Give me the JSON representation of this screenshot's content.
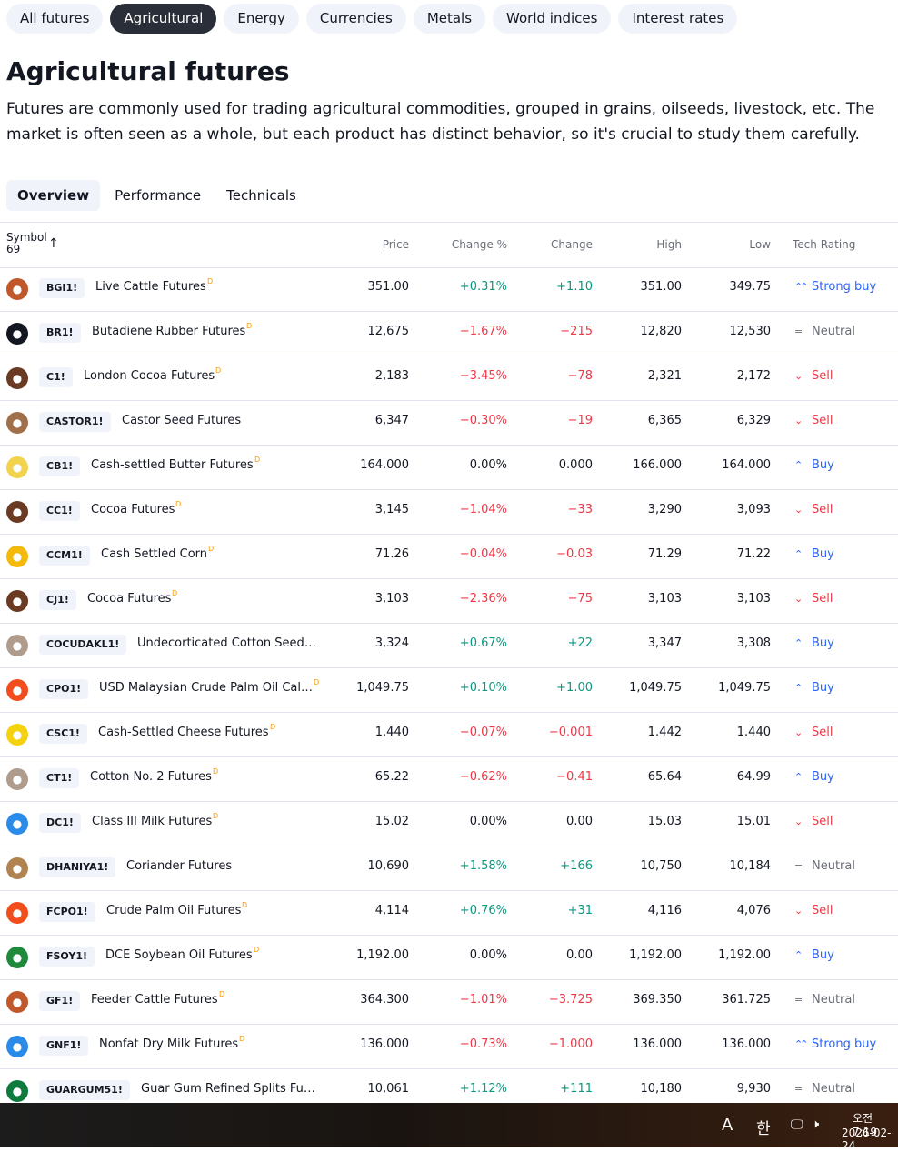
{
  "filters": [
    {
      "label": "All futures",
      "active": false
    },
    {
      "label": "Agricultural",
      "active": true
    },
    {
      "label": "Energy",
      "active": false
    },
    {
      "label": "Currencies",
      "active": false
    },
    {
      "label": "Metals",
      "active": false
    },
    {
      "label": "World indices",
      "active": false
    },
    {
      "label": "Interest rates",
      "active": false
    }
  ],
  "page": {
    "title": "Agricultural futures",
    "description": "Futures are commonly used for trading agricultural commodities, grouped in grains, oilseeds, livestock, etc. The market is often seen as a whole, but each product has distinct behavior, so it's crucial to study them carefully."
  },
  "tabs": [
    {
      "label": "Overview",
      "active": true
    },
    {
      "label": "Performance",
      "active": false
    },
    {
      "label": "Technicals",
      "active": false
    }
  ],
  "table": {
    "headers": {
      "symbol": "Symbol",
      "count": "69",
      "price": "Price",
      "change_pct": "Change %",
      "change": "Change",
      "high": "High",
      "low": "Low",
      "tech_rating": "Tech Rating"
    },
    "rows": [
      {
        "icon": "cattle-icon",
        "icon_color": "#c0582c",
        "ticker": "BGI1!",
        "name": "Live Cattle Futures",
        "delayed": true,
        "price": "351.00",
        "change_pct": "+0.31%",
        "change": "+1.10",
        "high": "351.00",
        "low": "349.75",
        "rating": "Strong buy",
        "dir": "pos",
        "rclass": "buy",
        "rglyph": "⌃⌃"
      },
      {
        "icon": "rubber-icon",
        "icon_color": "#131722",
        "ticker": "BR1!",
        "name": "Butadiene Rubber Futures",
        "delayed": true,
        "price": "12,675",
        "change_pct": "−1.67%",
        "change": "−215",
        "high": "12,820",
        "low": "12,530",
        "rating": "Neutral",
        "dir": "neg",
        "rclass": "neutral",
        "rglyph": "="
      },
      {
        "icon": "cocoa-icon",
        "icon_color": "#6b3a23",
        "ticker": "C1!",
        "name": "London Cocoa Futures",
        "delayed": true,
        "price": "2,183",
        "change_pct": "−3.45%",
        "change": "−78",
        "high": "2,321",
        "low": "2,172",
        "rating": "Sell",
        "dir": "neg",
        "rclass": "sell",
        "rglyph": "⌄"
      },
      {
        "icon": "seed-icon",
        "icon_color": "#a0704b",
        "ticker": "CASTOR1!",
        "name": "Castor Seed Futures",
        "delayed": false,
        "price": "6,347",
        "change_pct": "−0.30%",
        "change": "−19",
        "high": "6,365",
        "low": "6,329",
        "rating": "Sell",
        "dir": "neg",
        "rclass": "sell",
        "rglyph": "⌄"
      },
      {
        "icon": "butter-icon",
        "icon_color": "#f2d34d",
        "ticker": "CB1!",
        "name": "Cash-settled Butter Futures",
        "delayed": true,
        "price": "164.000",
        "change_pct": "0.00%",
        "change": "0.000",
        "high": "166.000",
        "low": "164.000",
        "rating": "Buy",
        "dir": "neu",
        "rclass": "buy",
        "rglyph": "⌃"
      },
      {
        "icon": "cocoa-icon",
        "icon_color": "#6b3a23",
        "ticker": "CC1!",
        "name": "Cocoa Futures",
        "delayed": true,
        "price": "3,145",
        "change_pct": "−1.04%",
        "change": "−33",
        "high": "3,290",
        "low": "3,093",
        "rating": "Sell",
        "dir": "neg",
        "rclass": "sell",
        "rglyph": "⌄"
      },
      {
        "icon": "corn-icon",
        "icon_color": "#f3b90b",
        "ticker": "CCM1!",
        "name": "Cash Settled Corn",
        "delayed": true,
        "price": "71.26",
        "change_pct": "−0.04%",
        "change": "−0.03",
        "high": "71.29",
        "low": "71.22",
        "rating": "Buy",
        "dir": "neg",
        "rclass": "buy",
        "rglyph": "⌃"
      },
      {
        "icon": "cocoa-icon",
        "icon_color": "#6b3a23",
        "ticker": "CJ1!",
        "name": "Cocoa Futures",
        "delayed": true,
        "price": "3,103",
        "change_pct": "−2.36%",
        "change": "−75",
        "high": "3,103",
        "low": "3,103",
        "rating": "Sell",
        "dir": "neg",
        "rclass": "sell",
        "rglyph": "⌄"
      },
      {
        "icon": "cotton-icon",
        "icon_color": "#b09c8c",
        "ticker": "COCUDAKL1!",
        "name": "Undecorticated Cotton Seed Oi…",
        "delayed": false,
        "price": "3,324",
        "change_pct": "+0.67%",
        "change": "+22",
        "high": "3,347",
        "low": "3,308",
        "rating": "Buy",
        "dir": "pos",
        "rclass": "buy",
        "rglyph": "⌃"
      },
      {
        "icon": "palm-oil-icon",
        "icon_color": "#f24d1c",
        "ticker": "CPO1!",
        "name": "USD Malaysian Crude Palm Oil Cale…",
        "delayed": true,
        "price": "1,049.75",
        "change_pct": "+0.10%",
        "change": "+1.00",
        "high": "1,049.75",
        "low": "1,049.75",
        "rating": "Buy",
        "dir": "pos",
        "rclass": "buy",
        "rglyph": "⌃"
      },
      {
        "icon": "cheese-icon",
        "icon_color": "#f5d20f",
        "ticker": "CSC1!",
        "name": "Cash-Settled Cheese Futures",
        "delayed": true,
        "price": "1.440",
        "change_pct": "−0.07%",
        "change": "−0.001",
        "high": "1.442",
        "low": "1.440",
        "rating": "Sell",
        "dir": "neg",
        "rclass": "sell",
        "rglyph": "⌄"
      },
      {
        "icon": "cotton-icon",
        "icon_color": "#b09c8c",
        "ticker": "CT1!",
        "name": "Cotton No. 2 Futures",
        "delayed": true,
        "price": "65.22",
        "change_pct": "−0.62%",
        "change": "−0.41",
        "high": "65.64",
        "low": "64.99",
        "rating": "Buy",
        "dir": "neg",
        "rclass": "buy",
        "rglyph": "⌃"
      },
      {
        "icon": "milk-icon",
        "icon_color": "#2a8be8",
        "ticker": "DC1!",
        "name": "Class III Milk Futures",
        "delayed": true,
        "price": "15.02",
        "change_pct": "0.00%",
        "change": "0.00",
        "high": "15.03",
        "low": "15.01",
        "rating": "Sell",
        "dir": "neu",
        "rclass": "sell",
        "rglyph": "⌄"
      },
      {
        "icon": "seed-icon",
        "icon_color": "#b08350",
        "ticker": "DHANIYA1!",
        "name": "Coriander Futures",
        "delayed": false,
        "price": "10,690",
        "change_pct": "+1.58%",
        "change": "+166",
        "high": "10,750",
        "low": "10,184",
        "rating": "Neutral",
        "dir": "pos",
        "rclass": "neutral",
        "rglyph": "="
      },
      {
        "icon": "palm-oil-icon",
        "icon_color": "#f24d1c",
        "ticker": "FCPO1!",
        "name": "Crude Palm Oil Futures",
        "delayed": true,
        "price": "4,114",
        "change_pct": "+0.76%",
        "change": "+31",
        "high": "4,116",
        "low": "4,076",
        "rating": "Sell",
        "dir": "pos",
        "rclass": "sell",
        "rglyph": "⌄"
      },
      {
        "icon": "soybean-oil-icon",
        "icon_color": "#1f8a3b",
        "ticker": "FSOY1!",
        "name": "DCE Soybean Oil Futures",
        "delayed": true,
        "price": "1,192.00",
        "change_pct": "0.00%",
        "change": "0.00",
        "high": "1,192.00",
        "low": "1,192.00",
        "rating": "Buy",
        "dir": "neu",
        "rclass": "buy",
        "rglyph": "⌃"
      },
      {
        "icon": "cattle-icon",
        "icon_color": "#c0582c",
        "ticker": "GF1!",
        "name": "Feeder Cattle Futures",
        "delayed": true,
        "price": "364.300",
        "change_pct": "−1.01%",
        "change": "−3.725",
        "high": "369.350",
        "low": "361.725",
        "rating": "Neutral",
        "dir": "neg",
        "rclass": "neutral",
        "rglyph": "="
      },
      {
        "icon": "milk-icon",
        "icon_color": "#2a8be8",
        "ticker": "GNF1!",
        "name": "Nonfat Dry Milk Futures",
        "delayed": true,
        "price": "136.000",
        "change_pct": "−0.73%",
        "change": "−1.000",
        "high": "136.000",
        "low": "136.000",
        "rating": "Strong buy",
        "dir": "neg",
        "rclass": "buy",
        "rglyph": "⌃⌃"
      },
      {
        "icon": "guar-gum-icon",
        "icon_color": "#0d7a3e",
        "ticker": "GUARGUM51!",
        "name": "Guar Gum Refined Splits Futures",
        "delayed": false,
        "price": "10,061",
        "change_pct": "+1.12%",
        "change": "+111",
        "high": "10,180",
        "low": "9,930",
        "rating": "Neutral",
        "dir": "pos",
        "rclass": "neutral",
        "rglyph": "="
      }
    ]
  },
  "taskbar": {
    "ime_mode": "A",
    "ime_lang": "한",
    "time": "오전 7:19",
    "date": "2026-02-24"
  },
  "colors": {
    "positive": "#089981",
    "negative": "#f23645",
    "buy": "#2962ff",
    "sell": "#f23645",
    "neutral": "#6a6d78",
    "delayed_marker": "#ff9800"
  }
}
